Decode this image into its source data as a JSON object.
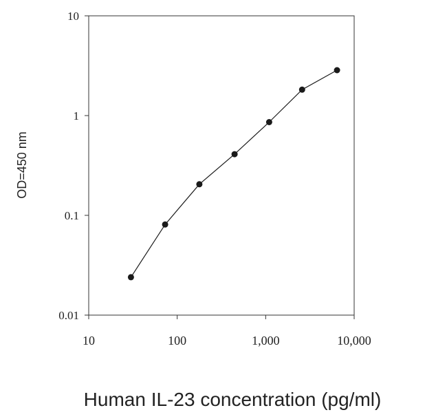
{
  "chart_data": {
    "type": "line",
    "xlabel": "Human IL-23 concentration (pg/ml)",
    "ylabel": "OD=450 nm",
    "x_scale": "log",
    "y_scale": "log",
    "xlim": [
      10,
      10000
    ],
    "ylim": [
      0.01,
      10
    ],
    "x_ticks": [
      10,
      100,
      1000,
      10000
    ],
    "x_tick_labels": [
      "10",
      "100",
      "1,000",
      "10,000"
    ],
    "y_ticks": [
      0.01,
      0.1,
      1,
      10
    ],
    "y_tick_labels": [
      "0.01",
      "0.1",
      "1",
      "10"
    ],
    "grid": false,
    "legend": "none",
    "series": [
      {
        "color": "#1a1a1a",
        "x": [
          30,
          73,
          178,
          445,
          1095,
          2580,
          6400
        ],
        "y": [
          0.024,
          0.081,
          0.205,
          0.41,
          0.86,
          1.82,
          2.85
        ]
      }
    ]
  }
}
